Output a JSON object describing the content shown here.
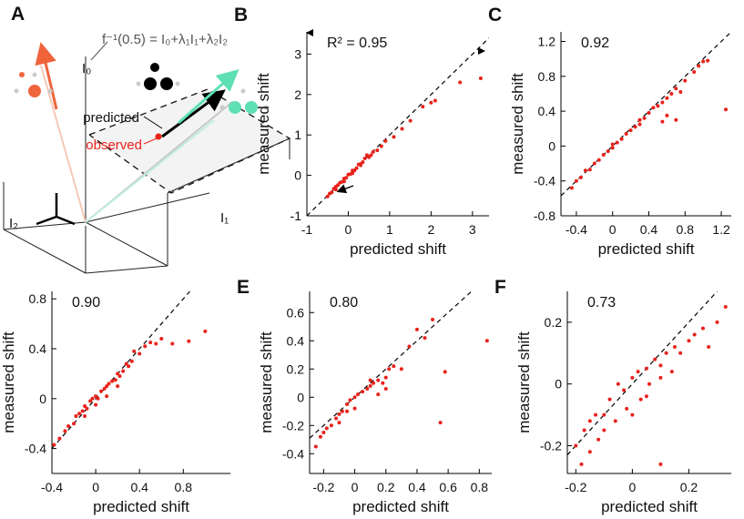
{
  "diagram": {
    "label": "A",
    "formula": "f⁻¹(0.5) = I₀+λ₁I₁+λ₂I₂",
    "axis_0": "I₀",
    "axis_1": "I₁",
    "axis_2": "I₂",
    "predicted": "predicted",
    "observed": "observed"
  },
  "chart_data": [
    {
      "type": "scatter",
      "panel_label": "B",
      "annotation": "R² = 0.95",
      "x_label": "predicted shift",
      "y_label": "measured shift",
      "color": "#e8221b",
      "diagonal": true,
      "xlim": [
        -1,
        3.4
      ],
      "ylim": [
        -1,
        3.55
      ],
      "xticks": [
        -1,
        0,
        1,
        2,
        3
      ],
      "yticks": [
        -1,
        0,
        1,
        2,
        3
      ],
      "x": [
        -0.5,
        -0.45,
        -0.4,
        -0.35,
        -0.3,
        -0.25,
        -0.2,
        -0.15,
        -0.1,
        -0.05,
        0,
        0.05,
        0.1,
        0.15,
        0.2,
        0.25,
        0.3,
        0.35,
        0.4,
        0.5,
        0.55,
        0.6,
        0.7,
        0.8,
        0.9,
        1.1,
        1.3,
        1.5,
        1.8,
        2.0,
        2.1,
        2.7,
        3.2,
        -0.3,
        -0.1,
        0.1,
        0.3,
        0.45
      ],
      "y": [
        -0.52,
        -0.45,
        -0.42,
        -0.33,
        -0.28,
        -0.24,
        -0.18,
        -0.16,
        -0.08,
        -0.06,
        0.02,
        0.03,
        0.12,
        0.12,
        0.18,
        0.27,
        0.28,
        0.33,
        0.42,
        0.45,
        0.5,
        0.58,
        0.62,
        0.72,
        0.85,
        0.95,
        1.15,
        1.35,
        1.7,
        1.8,
        1.85,
        2.3,
        2.4,
        -0.35,
        -0.15,
        0.05,
        0.25,
        0.5
      ]
    },
    {
      "type": "scatter",
      "panel_label": "C",
      "annotation": "0.92",
      "x_label": "predicted shift",
      "y_label": "measured shift",
      "color": "#e8221b",
      "diagonal": true,
      "xlim": [
        -0.57,
        1.31
      ],
      "ylim": [
        -0.8,
        1.31
      ],
      "xticks": [
        -0.4,
        0,
        0.4,
        0.8,
        1.2
      ],
      "yticks": [
        -0.8,
        -0.4,
        0,
        0.4,
        0.8,
        1.2
      ],
      "x": [
        -0.45,
        -0.4,
        -0.35,
        -0.3,
        -0.25,
        -0.2,
        -0.15,
        -0.1,
        -0.05,
        0,
        0.05,
        0.1,
        0.15,
        0.2,
        0.25,
        0.3,
        0.35,
        0.4,
        0.45,
        0.5,
        0.55,
        0.6,
        0.65,
        0.7,
        0.75,
        0.8,
        0.9,
        0.95,
        1.0,
        1.05,
        0.6,
        0.55,
        0.7,
        1.25,
        0.3,
        0.0
      ],
      "y": [
        -0.48,
        -0.4,
        -0.36,
        -0.28,
        -0.27,
        -0.2,
        -0.16,
        -0.1,
        -0.06,
        -0.02,
        0.04,
        0.08,
        0.14,
        0.18,
        0.22,
        0.3,
        0.32,
        0.38,
        0.44,
        0.46,
        0.5,
        0.55,
        0.6,
        0.66,
        0.62,
        0.75,
        0.85,
        0.92,
        0.97,
        0.98,
        0.35,
        0.28,
        0.3,
        0.42,
        0.25,
        0.02
      ]
    },
    {
      "type": "scatter",
      "panel_label": "D",
      "annotation": "0.90",
      "x_label": "predicted shift",
      "y_label": "measured shift",
      "color": "#e8221b",
      "diagonal": true,
      "xlim": [
        -0.4,
        1.23
      ],
      "ylim": [
        -0.6,
        0.86
      ],
      "xticks": [
        -0.4,
        0,
        0.4,
        0.8
      ],
      "yticks": [
        -0.4,
        0,
        0.4,
        0.8
      ],
      "x": [
        -0.38,
        -0.33,
        -0.28,
        -0.25,
        -0.2,
        -0.18,
        -0.15,
        -0.12,
        -0.1,
        -0.08,
        -0.05,
        -0.03,
        0,
        0.02,
        0.05,
        0.08,
        0.1,
        0.12,
        0.15,
        0.18,
        0.2,
        0.22,
        0.25,
        0.28,
        0.3,
        0.33,
        0.35,
        0.4,
        0.45,
        0.5,
        0.55,
        0.6,
        0.7,
        0.85,
        1.0,
        -0.1,
        0.0,
        0.1,
        0.2
      ],
      "y": [
        -0.37,
        -0.32,
        -0.26,
        -0.22,
        -0.2,
        -0.14,
        -0.12,
        -0.1,
        -0.06,
        -0.08,
        -0.02,
        0,
        0.02,
        0,
        0.06,
        0.08,
        0.1,
        0.12,
        0.14,
        0.15,
        0.2,
        0.18,
        0.22,
        0.28,
        0.26,
        0.3,
        0.38,
        0.36,
        0.42,
        0.45,
        0.44,
        0.48,
        0.44,
        0.46,
        0.54,
        -0.14,
        -0.05,
        0.02,
        0.1
      ]
    },
    {
      "type": "scatter",
      "panel_label": "E",
      "annotation": "0.80",
      "x_label": "predicted shift",
      "y_label": "measured shift",
      "color": "#e8221b",
      "diagonal": true,
      "xlim": [
        -0.29,
        0.88
      ],
      "ylim": [
        -0.54,
        0.75
      ],
      "xticks": [
        -0.2,
        0,
        0.2,
        0.4,
        0.6,
        0.8
      ],
      "yticks": [
        -0.4,
        -0.2,
        0,
        0.2,
        0.4,
        0.6
      ],
      "x": [
        -0.25,
        -0.22,
        -0.2,
        -0.18,
        -0.15,
        -0.12,
        -0.1,
        -0.08,
        -0.05,
        -0.03,
        0,
        0.02,
        0.05,
        0.08,
        0.1,
        0.12,
        0.15,
        0.18,
        0.2,
        0.22,
        0.25,
        0.3,
        0.35,
        0.4,
        0.45,
        0.5,
        0.55,
        0.58,
        0.85,
        -0.1,
        0.0,
        0.1,
        0.2,
        -0.05,
        0.15
      ],
      "y": [
        -0.35,
        -0.28,
        -0.25,
        -0.22,
        -0.2,
        -0.15,
        -0.12,
        -0.1,
        -0.05,
        -0.02,
        0,
        0.02,
        0.04,
        0.06,
        0.08,
        0.1,
        0.12,
        0.1,
        0.14,
        0.2,
        0.22,
        0.2,
        0.36,
        0.48,
        0.42,
        0.55,
        -0.18,
        0.18,
        0.4,
        -0.18,
        -0.08,
        0.12,
        0.06,
        -0.1,
        0.02
      ]
    },
    {
      "type": "scatter",
      "panel_label": "F",
      "annotation": "0.73",
      "x_label": "predicted shift",
      "y_label": "measured shift",
      "color": "#e8221b",
      "diagonal": true,
      "xlim": [
        -0.23,
        0.35
      ],
      "ylim": [
        -0.29,
        0.3
      ],
      "xticks": [
        -0.2,
        0,
        0.2
      ],
      "yticks": [
        -0.2,
        0,
        0.2
      ],
      "x": [
        -0.2,
        -0.18,
        -0.17,
        -0.15,
        -0.13,
        -0.12,
        -0.1,
        -0.08,
        -0.06,
        -0.05,
        -0.03,
        -0.02,
        0,
        0.02,
        0.03,
        0.05,
        0.06,
        0.08,
        0.1,
        0.12,
        0.14,
        0.15,
        0.17,
        0.2,
        0.22,
        0.25,
        0.27,
        0.3,
        0.33,
        -0.15,
        -0.1,
        0,
        0.05,
        0.1,
        0.1
      ],
      "y": [
        -0.2,
        -0.26,
        -0.15,
        -0.22,
        -0.1,
        -0.18,
        -0.1,
        -0.05,
        -0.12,
        0,
        -0.02,
        -0.08,
        0.02,
        0.04,
        -0.05,
        0.05,
        0,
        0.08,
        0.06,
        0.1,
        0.04,
        0.12,
        0.1,
        0.14,
        0.16,
        0.18,
        0.12,
        0.2,
        0.25,
        -0.12,
        -0.15,
        -0.1,
        -0.04,
        0.02,
        -0.26
      ]
    }
  ]
}
